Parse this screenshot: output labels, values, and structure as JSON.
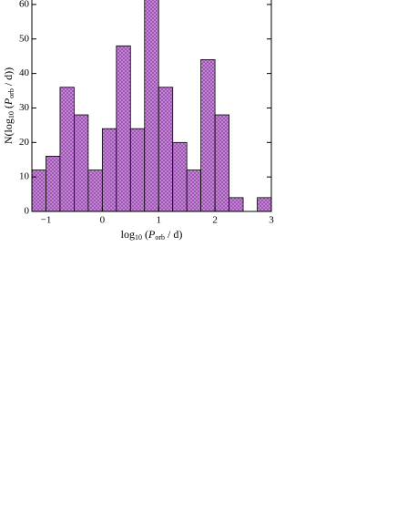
{
  "chart_data": {
    "type": "histogram",
    "bins": [
      -1.25,
      -1.0,
      -0.75,
      -0.5,
      -0.25,
      0,
      0.25,
      0.5,
      0.75,
      1.0,
      1.25,
      1.5,
      1.75,
      2.0,
      2.25,
      2.5,
      2.75,
      3.0
    ],
    "values": [
      12,
      16,
      36,
      28,
      12,
      24,
      48,
      24,
      64,
      36,
      20,
      12,
      44,
      28,
      4,
      0,
      4
    ],
    "color": "#c77fdc",
    "xlim": [
      -1.25,
      3
    ],
    "ylim": [
      0,
      61.3
    ],
    "xticks": [
      {
        "value": -1,
        "label": "−1"
      },
      0,
      1,
      2,
      3
    ],
    "yticks": [
      0,
      10,
      20,
      30,
      40,
      50,
      60
    ],
    "xlabel": [
      "log",
      "10",
      " (",
      "P",
      "orb",
      " / d)"
    ],
    "ylabel": [
      "N(log",
      "10",
      " (",
      "P",
      "orb",
      " / d))"
    ]
  }
}
